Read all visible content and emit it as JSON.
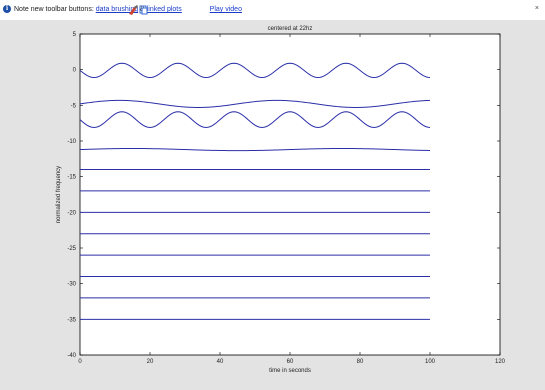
{
  "infobar": {
    "prefix": "Note new toolbar buttons:",
    "link1": "data brushing",
    "sep": "&",
    "link2": "linked plots",
    "link3": "Play video"
  },
  "chart_data": {
    "type": "line",
    "title": "centered at 22hz",
    "xlabel": "time in seconds",
    "ylabel": "normalized frequency",
    "xlim": [
      0,
      120
    ],
    "ylim": [
      -40,
      5
    ],
    "xticks": [
      0,
      20,
      40,
      60,
      80,
      100,
      120
    ],
    "yticks": [
      5,
      0,
      -5,
      -10,
      -15,
      -20,
      -25,
      -30,
      -35,
      -40
    ],
    "x_end": 100,
    "series": [
      {
        "offset": -0.1,
        "amp": 1.0,
        "period": 16,
        "phase": 3.14
      },
      {
        "offset": -4.8,
        "amp": 0.5,
        "period": 45,
        "phase": 0.0
      },
      {
        "offset": -7.0,
        "amp": 1.1,
        "period": 16,
        "phase": 3.14
      },
      {
        "offset": -11.2,
        "amp": 0.15,
        "period": 60,
        "phase": 0.0
      },
      {
        "offset": -14.0,
        "amp": 0,
        "period": 1,
        "phase": 0
      },
      {
        "offset": -17.0,
        "amp": 0,
        "period": 1,
        "phase": 0
      },
      {
        "offset": -20.0,
        "amp": 0,
        "period": 1,
        "phase": 0
      },
      {
        "offset": -23.0,
        "amp": 0,
        "period": 1,
        "phase": 0
      },
      {
        "offset": -26.0,
        "amp": 0,
        "period": 1,
        "phase": 0
      },
      {
        "offset": -29.0,
        "amp": 0,
        "period": 1,
        "phase": 0
      },
      {
        "offset": -32.0,
        "amp": 0,
        "period": 1,
        "phase": 0
      },
      {
        "offset": -35.0,
        "amp": 0,
        "period": 1,
        "phase": 0
      }
    ],
    "line_color": "#2b2fa8",
    "grid": false
  },
  "colors": {
    "figure_bg": "#e3e3e3",
    "axes_bg": "#ffffff",
    "link": "#1a3cc9"
  }
}
